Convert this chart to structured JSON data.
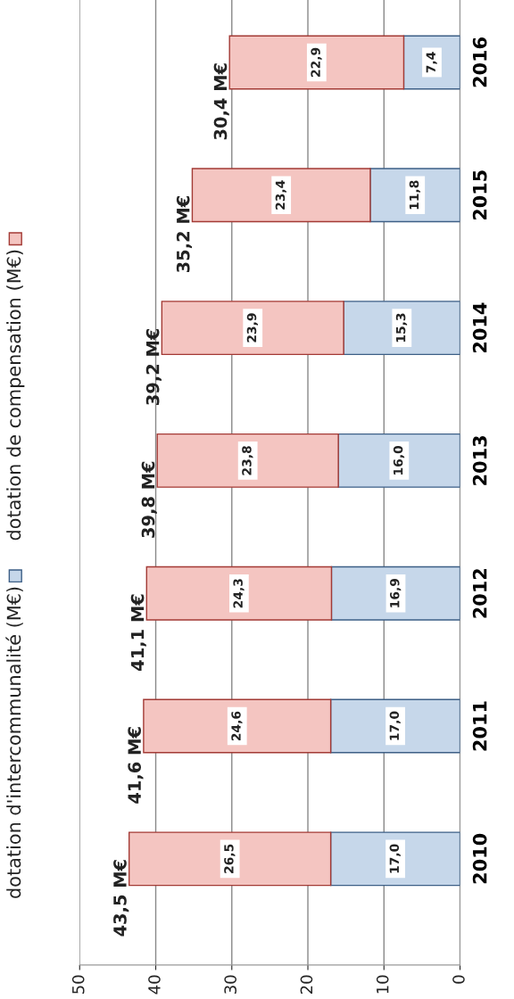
{
  "chart_data": {
    "type": "bar",
    "orientation": "horizontal",
    "stacked": true,
    "categories": [
      "2016",
      "2015",
      "2014",
      "2013",
      "2012",
      "2011",
      "2010"
    ],
    "series": [
      {
        "name": "dotation d'intercommunalité (M€)",
        "color": "#c6d7ea",
        "values": [
          7.4,
          11.8,
          15.3,
          16.0,
          16.9,
          17.0,
          17.0
        ],
        "value_labels": [
          "7,4",
          "11,8",
          "15,3",
          "16,0",
          "16,9",
          "17,0",
          "17,0"
        ]
      },
      {
        "name": "dotation de compensation (M€)",
        "color": "#f4c5c1",
        "values": [
          22.9,
          23.4,
          23.9,
          23.8,
          24.3,
          24.6,
          26.5
        ],
        "value_labels": [
          "22,9",
          "23,4",
          "23,9",
          "23,8",
          "24,3",
          "24,6",
          "26,5"
        ]
      }
    ],
    "totals": [
      "30,4 M€",
      "35,2 M€",
      "39,2 M€",
      "39,8 M€",
      "41,1 M€",
      "41,6 M€",
      "43,5 M€"
    ],
    "xlim": [
      50,
      0
    ],
    "xticks": [
      50,
      40,
      30,
      20,
      10,
      0
    ],
    "grid": "x",
    "legend": "left"
  }
}
